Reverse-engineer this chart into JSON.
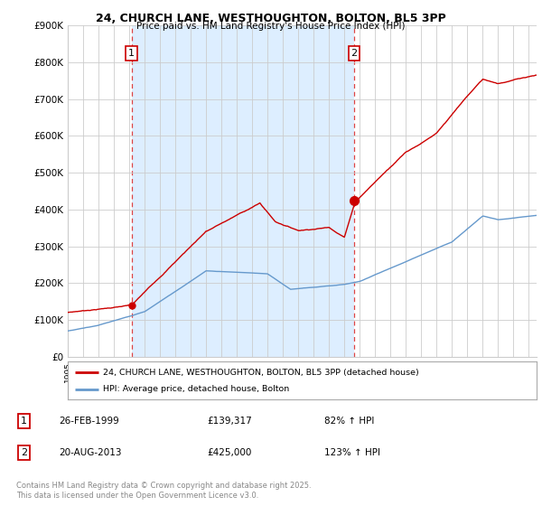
{
  "title": "24, CHURCH LANE, WESTHOUGHTON, BOLTON, BL5 3PP",
  "subtitle": "Price paid vs. HM Land Registry's House Price Index (HPI)",
  "ylabel_ticks": [
    "£0",
    "£100K",
    "£200K",
    "£300K",
    "£400K",
    "£500K",
    "£600K",
    "£700K",
    "£800K",
    "£900K"
  ],
  "ytick_values": [
    0,
    100000,
    200000,
    300000,
    400000,
    500000,
    600000,
    700000,
    800000,
    900000
  ],
  "ylim": [
    0,
    900000
  ],
  "xlim_start": 1995.0,
  "xlim_end": 2025.5,
  "sale1_date": 1999.15,
  "sale1_price": 139317,
  "sale1_label": "1",
  "sale2_date": 2013.63,
  "sale2_price": 425000,
  "sale2_label": "2",
  "legend_red_label": "24, CHURCH LANE, WESTHOUGHTON, BOLTON, BL5 3PP (detached house)",
  "legend_blue_label": "HPI: Average price, detached house, Bolton",
  "annot1_date": "26-FEB-1999",
  "annot1_price": "£139,317",
  "annot1_hpi": "82% ↑ HPI",
  "annot2_date": "20-AUG-2013",
  "annot2_price": "£425,000",
  "annot2_hpi": "123% ↑ HPI",
  "footnote": "Contains HM Land Registry data © Crown copyright and database right 2025.\nThis data is licensed under the Open Government Licence v3.0.",
  "red_color": "#cc0000",
  "blue_color": "#6699cc",
  "dashed_red": "#dd4444",
  "shade_color": "#ddeeff",
  "background_color": "#ffffff",
  "grid_color": "#cccccc"
}
